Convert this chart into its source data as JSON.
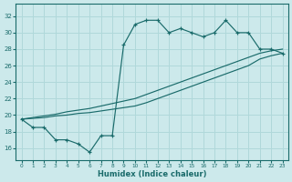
{
  "xlabel": "Humidex (Indice chaleur)",
  "xlim": [
    -0.5,
    23.5
  ],
  "ylim": [
    14.5,
    33.5
  ],
  "yticks": [
    16,
    18,
    20,
    22,
    24,
    26,
    28,
    30,
    32
  ],
  "xticks": [
    0,
    1,
    2,
    3,
    4,
    5,
    6,
    7,
    8,
    9,
    10,
    11,
    12,
    13,
    14,
    15,
    16,
    17,
    18,
    19,
    20,
    21,
    22,
    23
  ],
  "bg_color": "#cce9eb",
  "grid_color": "#b0d8da",
  "line_color": "#1a6b6b",
  "curve1_x": [
    0,
    1,
    2,
    3,
    4,
    5,
    6,
    7,
    8,
    9,
    10,
    11,
    12,
    13,
    14,
    15,
    16,
    17,
    18,
    19,
    20,
    21,
    22,
    23
  ],
  "curve1_y": [
    19.5,
    18.5,
    18.5,
    17.0,
    17.0,
    16.5,
    15.5,
    17.5,
    17.5,
    28.5,
    31.0,
    31.5,
    31.5,
    30.0,
    30.5,
    30.0,
    29.5,
    30.0,
    31.5,
    30.0,
    30.0,
    28.0,
    28.0,
    27.5
  ],
  "curve2_x": [
    0,
    1,
    2,
    3,
    4,
    5,
    6,
    7,
    8,
    9,
    10,
    11,
    12,
    13,
    14,
    15,
    16,
    17,
    18,
    19,
    20,
    21,
    22,
    23
  ],
  "curve2_y": [
    19.5,
    19.7,
    19.9,
    20.1,
    20.4,
    20.6,
    20.8,
    21.1,
    21.4,
    21.7,
    22.0,
    22.5,
    23.0,
    23.5,
    24.0,
    24.5,
    25.0,
    25.5,
    26.0,
    26.5,
    27.0,
    27.5,
    27.8,
    28.0
  ],
  "curve3_x": [
    0,
    1,
    2,
    3,
    4,
    5,
    6,
    7,
    8,
    9,
    10,
    11,
    12,
    13,
    14,
    15,
    16,
    17,
    18,
    19,
    20,
    21,
    22,
    23
  ],
  "curve3_y": [
    19.5,
    19.6,
    19.7,
    19.9,
    20.0,
    20.2,
    20.3,
    20.5,
    20.7,
    20.9,
    21.1,
    21.5,
    22.0,
    22.5,
    23.0,
    23.5,
    24.0,
    24.5,
    25.0,
    25.5,
    26.0,
    26.8,
    27.2,
    27.5
  ]
}
